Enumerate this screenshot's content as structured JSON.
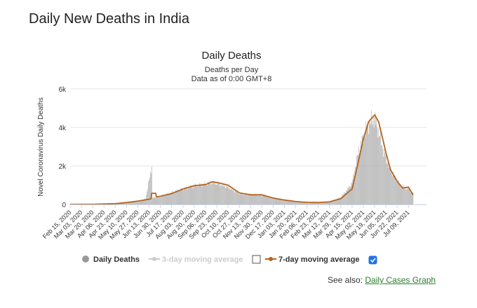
{
  "page": {
    "title": "Daily New Deaths in India"
  },
  "see_also": {
    "label": "See also:",
    "link_text": "Daily Cases Graph"
  },
  "colors": {
    "bar": "#aaaaaa",
    "avg7": "#b5651d",
    "avg3": "#cccccc",
    "grid": "#e6e6e6",
    "check": "#1e73e8"
  },
  "chart_data": {
    "type": "bar",
    "title": "Daily Deaths",
    "subtitle1": "Deaths per Day",
    "subtitle2": "Data as of 0:00 GMT+8",
    "ylabel": "Novel Coronavirus Daily Deaths",
    "ylim": [
      0,
      6000
    ],
    "yticks": [
      0,
      2000,
      4000,
      6000
    ],
    "ytick_labels": [
      "0",
      "2k",
      "4k",
      "6k"
    ],
    "grid": true,
    "legend_position": "bottom",
    "xtick_labels": [
      "Feb 15, 2020",
      "Mar 03, 2020",
      "Mar 20, 2020",
      "Apr 06, 2020",
      "Apr 23, 2020",
      "May 10, 2020",
      "May 27, 2020",
      "Jun 13, 2020",
      "Jun 30, 2020",
      "Jul 17, 2020",
      "Aug 03, 2020",
      "Aug 20, 2020",
      "Sep 06, 2020",
      "Sep 23, 2020",
      "Oct 10, 2020",
      "Oct 27, 2020",
      "Nov 13, 2020",
      "Nov 30, 2020",
      "Dec 17, 2020",
      "Jan 03, 2021",
      "Jan 20, 2021",
      "Feb 06, 2021",
      "Feb 23, 2021",
      "Mar 12, 2021",
      "Mar 29, 2021",
      "Apr 15, 2021",
      "May 02, 2021",
      "May 19, 2021",
      "Jun 05, 2021",
      "Jun 22, 2021",
      "Jul 09, 2021"
    ],
    "series": [
      {
        "name": "Daily Deaths",
        "type": "bar",
        "points": [
          [
            "Feb 15, 2020",
            0
          ],
          [
            "Mar 20, 2020",
            5
          ],
          [
            "Apr 06, 2020",
            30
          ],
          [
            "Apr 23, 2020",
            50
          ],
          [
            "May 10, 2020",
            90
          ],
          [
            "May 27, 2020",
            150
          ],
          [
            "Jun 08, 2020",
            300
          ],
          [
            "Jun 17, 2020",
            2003
          ],
          [
            "Jun 18, 2020",
            340
          ],
          [
            "Jun 30, 2020",
            420
          ],
          [
            "Jul 17, 2020",
            620
          ],
          [
            "Aug 03, 2020",
            800
          ],
          [
            "Aug 20, 2020",
            970
          ],
          [
            "Sep 06, 2020",
            1060
          ],
          [
            "Sep 16, 2020",
            1150
          ],
          [
            "Sep 23, 2020",
            1100
          ],
          [
            "Oct 10, 2020",
            900
          ],
          [
            "Oct 27, 2020",
            550
          ],
          [
            "Nov 13, 2020",
            520
          ],
          [
            "Nov 30, 2020",
            480
          ],
          [
            "Dec 17, 2020",
            350
          ],
          [
            "Jan 03, 2021",
            230
          ],
          [
            "Jan 20, 2021",
            150
          ],
          [
            "Feb 06, 2021",
            100
          ],
          [
            "Feb 23, 2021",
            100
          ],
          [
            "Mar 12, 2021",
            140
          ],
          [
            "Mar 29, 2021",
            360
          ],
          [
            "Apr 15, 2021",
            1100
          ],
          [
            "Apr 25, 2021",
            2800
          ],
          [
            "May 02, 2021",
            3500
          ],
          [
            "May 10, 2021",
            4200
          ],
          [
            "May 19, 2021",
            4500
          ],
          [
            "May 25, 2021",
            3800
          ],
          [
            "Jun 01, 2021",
            2800
          ],
          [
            "Jun 05, 2021",
            2400
          ],
          [
            "Jun 12, 2021",
            1800
          ],
          [
            "Jun 22, 2021",
            1200
          ],
          [
            "Jun 30, 2021",
            900
          ],
          [
            "Jul 09, 2021",
            800
          ],
          [
            "Jul 16, 2021",
            550
          ]
        ]
      },
      {
        "name": "3-day moving average",
        "type": "line",
        "visible": false
      },
      {
        "name": "7-day moving average",
        "type": "line",
        "visible": true,
        "points": [
          [
            "Feb 15, 2020",
            0
          ],
          [
            "Mar 20, 2020",
            2
          ],
          [
            "Apr 06, 2020",
            20
          ],
          [
            "Apr 23, 2020",
            40
          ],
          [
            "May 10, 2020",
            100
          ],
          [
            "May 27, 2020",
            170
          ],
          [
            "Jun 13, 2020",
            270
          ],
          [
            "Jun 16, 2020",
            300
          ],
          [
            "Jun 17, 2020",
            580
          ],
          [
            "Jun 23, 2020",
            580
          ],
          [
            "Jun 24, 2020",
            400
          ],
          [
            "Jun 30, 2020",
            420
          ],
          [
            "Jul 17, 2020",
            560
          ],
          [
            "Aug 03, 2020",
            800
          ],
          [
            "Aug 20, 2020",
            970
          ],
          [
            "Sep 06, 2020",
            1030
          ],
          [
            "Sep 16, 2020",
            1170
          ],
          [
            "Sep 23, 2020",
            1140
          ],
          [
            "Oct 10, 2020",
            1000
          ],
          [
            "Oct 27, 2020",
            600
          ],
          [
            "Nov 13, 2020",
            500
          ],
          [
            "Nov 30, 2020",
            500
          ],
          [
            "Dec 17, 2020",
            330
          ],
          [
            "Jan 03, 2021",
            230
          ],
          [
            "Jan 20, 2021",
            150
          ],
          [
            "Feb 06, 2021",
            110
          ],
          [
            "Feb 23, 2021",
            100
          ],
          [
            "Mar 12, 2021",
            130
          ],
          [
            "Mar 29, 2021",
            300
          ],
          [
            "Apr 15, 2021",
            800
          ],
          [
            "Apr 25, 2021",
            2300
          ],
          [
            "May 02, 2021",
            3400
          ],
          [
            "May 10, 2021",
            4300
          ],
          [
            "May 19, 2021",
            4650
          ],
          [
            "May 25, 2021",
            4300
          ],
          [
            "Jun 01, 2021",
            3300
          ],
          [
            "Jun 05, 2021",
            2700
          ],
          [
            "Jun 12, 2021",
            1800
          ],
          [
            "Jun 22, 2021",
            1200
          ],
          [
            "Jun 30, 2021",
            850
          ],
          [
            "Jul 09, 2021",
            900
          ],
          [
            "Jul 16, 2021",
            500
          ]
        ]
      }
    ],
    "legend": [
      {
        "label": "Daily Deaths",
        "checkbox": null
      },
      {
        "label": "3-day moving average",
        "checkbox": false
      },
      {
        "label": "7-day moving average",
        "checkbox": true
      }
    ]
  }
}
